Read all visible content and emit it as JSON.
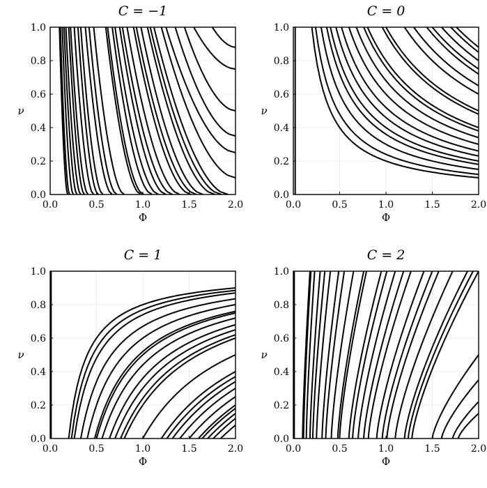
{
  "chart_data": [
    {
      "type": "line",
      "title": "C = −1",
      "xlabel": "Φ",
      "ylabel": "ν",
      "xlim": [
        0,
        2
      ],
      "ylim": [
        0,
        1
      ],
      "xticks": [
        "0.0",
        "0.5",
        "1.0",
        "1.5",
        "2.0"
      ],
      "yticks": [
        "0.0",
        "0.2",
        "0.4",
        "0.6",
        "0.8",
        "1.0"
      ],
      "grid": true,
      "curve_family": "decreasing",
      "series": [
        {
          "x": [
            0.19,
            0.1
          ],
          "y": [
            0,
            1
          ]
        },
        {
          "x": [
            0.21,
            0.11
          ],
          "y": [
            0,
            1
          ]
        },
        {
          "x": [
            0.25,
            0.13
          ],
          "y": [
            0,
            1
          ]
        },
        {
          "x": [
            0.29,
            0.15
          ],
          "y": [
            0,
            1
          ]
        },
        {
          "x": [
            0.33,
            0.17
          ],
          "y": [
            0,
            1
          ]
        },
        {
          "x": [
            0.37,
            0.2
          ],
          "y": [
            0,
            1
          ]
        },
        {
          "x": [
            0.41,
            0.22
          ],
          "y": [
            0,
            1
          ]
        },
        {
          "x": [
            0.47,
            0.26
          ],
          "y": [
            0,
            1
          ]
        },
        {
          "x": [
            0.52,
            0.3
          ],
          "y": [
            0,
            1
          ]
        },
        {
          "x": [
            0.57,
            0.33
          ],
          "y": [
            0,
            1
          ]
        },
        {
          "x": [
            0.67,
            0.38
          ],
          "y": [
            0,
            1
          ]
        },
        {
          "x": [
            0.72,
            0.42
          ],
          "y": [
            0,
            1
          ]
        },
        {
          "x": [
            0.8,
            0.47
          ],
          "y": [
            0,
            1
          ]
        },
        {
          "x": [
            0.98,
            0.6
          ],
          "y": [
            0,
            1
          ]
        },
        {
          "x": [
            1.01,
            0.62
          ],
          "y": [
            0,
            1
          ]
        },
        {
          "x": [
            1.1,
            0.67
          ],
          "y": [
            0,
            1
          ]
        },
        {
          "x": [
            1.17,
            0.7
          ],
          "y": [
            0,
            1
          ]
        },
        {
          "x": [
            1.25,
            0.75
          ],
          "y": [
            0,
            1
          ]
        },
        {
          "x": [
            1.32,
            0.78
          ],
          "y": [
            0,
            1
          ]
        },
        {
          "x": [
            1.4,
            0.83
          ],
          "y": [
            0,
            1
          ]
        },
        {
          "x": [
            1.52,
            0.9
          ],
          "y": [
            0,
            1
          ]
        },
        {
          "x": [
            1.58,
            0.93
          ],
          "y": [
            0,
            1
          ]
        },
        {
          "x": [
            1.65,
            0.98
          ],
          "y": [
            0,
            1
          ]
        },
        {
          "x": [
            1.78,
            1.05
          ],
          "y": [
            0,
            1
          ]
        },
        {
          "x": [
            1.85,
            1.08
          ],
          "y": [
            0,
            1
          ]
        },
        {
          "x": [
            1.92,
            1.12
          ],
          "y": [
            0,
            1
          ]
        },
        {
          "x": [
            2.0,
            1.2
          ],
          "y": [
            0.1,
            1
          ]
        },
        {
          "x": [
            2.0,
            1.25
          ],
          "y": [
            0.25,
            1
          ]
        },
        {
          "x": [
            2.0,
            1.35
          ],
          "y": [
            0.35,
            1
          ]
        },
        {
          "x": [
            2.0,
            1.45
          ],
          "y": [
            0.5,
            1
          ]
        },
        {
          "x": [
            2.0,
            1.55
          ],
          "y": [
            0.75,
            1
          ]
        },
        {
          "x": [
            2.0,
            1.75
          ],
          "y": [
            0.88,
            1
          ]
        }
      ]
    },
    {
      "type": "line",
      "title": "C = 0",
      "xlabel": "Φ",
      "ylabel": "ν",
      "xlim": [
        0,
        2
      ],
      "ylim": [
        0,
        1
      ],
      "xticks": [
        "0.0",
        "0.5",
        "1.0",
        "1.5",
        "2.0"
      ],
      "yticks": [
        "0.0",
        "0.2",
        "0.4",
        "0.6",
        "0.8",
        "1.0"
      ],
      "grid": true,
      "curve_family": "hyperbolic",
      "series": [
        {
          "x": [
            0.02,
            0.02
          ],
          "y": [
            0,
            1
          ]
        },
        {
          "x": [
            0.2,
            2.0
          ],
          "y": [
            1,
            0.1
          ]
        },
        {
          "x": [
            0.24,
            2.0
          ],
          "y": [
            1,
            0.12
          ]
        },
        {
          "x": [
            0.3,
            2.0
          ],
          "y": [
            1,
            0.15
          ]
        },
        {
          "x": [
            0.36,
            2.0
          ],
          "y": [
            1,
            0.18
          ]
        },
        {
          "x": [
            0.4,
            2.0
          ],
          "y": [
            1,
            0.2
          ]
        },
        {
          "x": [
            0.46,
            2.0
          ],
          "y": [
            1,
            0.23
          ]
        },
        {
          "x": [
            0.52,
            2.0
          ],
          "y": [
            1,
            0.26
          ]
        },
        {
          "x": [
            0.6,
            2.0
          ],
          "y": [
            1,
            0.3
          ]
        },
        {
          "x": [
            0.68,
            2.0
          ],
          "y": [
            1,
            0.34
          ]
        },
        {
          "x": [
            0.76,
            2.0
          ],
          "y": [
            1,
            0.38
          ]
        },
        {
          "x": [
            0.8,
            2.0
          ],
          "y": [
            1,
            0.4
          ]
        },
        {
          "x": [
            0.96,
            2.0
          ],
          "y": [
            1,
            0.48
          ]
        },
        {
          "x": [
            1.0,
            2.0
          ],
          "y": [
            1,
            0.5
          ]
        },
        {
          "x": [
            1.2,
            2.0
          ],
          "y": [
            1,
            0.6
          ]
        },
        {
          "x": [
            1.3,
            2.0
          ],
          "y": [
            1,
            0.65
          ]
        },
        {
          "x": [
            1.44,
            2.0
          ],
          "y": [
            1,
            0.72
          ]
        },
        {
          "x": [
            1.5,
            2.0
          ],
          "y": [
            1,
            0.75
          ]
        },
        {
          "x": [
            1.6,
            2.0
          ],
          "y": [
            1,
            0.8
          ]
        },
        {
          "x": [
            1.7,
            2.0
          ],
          "y": [
            1,
            0.85
          ]
        },
        {
          "x": [
            1.76,
            2.0
          ],
          "y": [
            1,
            0.88
          ]
        }
      ]
    },
    {
      "type": "line",
      "title": "C = 1",
      "xlabel": "Φ",
      "ylabel": "ν",
      "xlim": [
        0,
        2
      ],
      "ylim": [
        0,
        1
      ],
      "xticks": [
        "0.0",
        "0.5",
        "1.0",
        "1.5",
        "2.0"
      ],
      "yticks": [
        "0.0",
        "0.2",
        "0.4",
        "0.6",
        "0.8",
        "1.0"
      ],
      "grid": true,
      "curve_family": "saturating",
      "series": [
        {
          "x": [
            0.01,
            0.01
          ],
          "y": [
            0,
            1
          ]
        },
        {
          "x": [
            0.2,
            2.0
          ],
          "y": [
            0,
            0.9
          ]
        },
        {
          "x": [
            0.23,
            2.0
          ],
          "y": [
            0,
            0.885
          ]
        },
        {
          "x": [
            0.26,
            2.0
          ],
          "y": [
            0,
            0.87
          ]
        },
        {
          "x": [
            0.33,
            2.0
          ],
          "y": [
            0,
            0.835
          ]
        },
        {
          "x": [
            0.4,
            2.0
          ],
          "y": [
            0,
            0.8
          ]
        },
        {
          "x": [
            0.48,
            2.0
          ],
          "y": [
            0,
            0.76
          ]
        },
        {
          "x": [
            0.5,
            2.0
          ],
          "y": [
            0,
            0.75
          ]
        },
        {
          "x": [
            0.56,
            2.0
          ],
          "y": [
            0,
            0.72
          ]
        },
        {
          "x": [
            0.64,
            2.0
          ],
          "y": [
            0,
            0.68
          ]
        },
        {
          "x": [
            0.7,
            2.0
          ],
          "y": [
            0,
            0.65
          ]
        },
        {
          "x": [
            0.76,
            2.0
          ],
          "y": [
            0,
            0.62
          ]
        },
        {
          "x": [
            0.8,
            2.0
          ],
          "y": [
            0,
            0.6
          ]
        },
        {
          "x": [
            1.0,
            2.0
          ],
          "y": [
            0,
            0.5
          ]
        },
        {
          "x": [
            1.2,
            2.0
          ],
          "y": [
            0,
            0.4
          ]
        },
        {
          "x": [
            1.26,
            2.0
          ],
          "y": [
            0,
            0.37
          ]
        },
        {
          "x": [
            1.32,
            2.0
          ],
          "y": [
            0,
            0.34
          ]
        },
        {
          "x": [
            1.4,
            2.0
          ],
          "y": [
            0,
            0.3
          ]
        },
        {
          "x": [
            1.5,
            2.0
          ],
          "y": [
            0,
            0.25
          ]
        },
        {
          "x": [
            1.6,
            2.0
          ],
          "y": [
            0,
            0.2
          ]
        },
        {
          "x": [
            1.64,
            2.0
          ],
          "y": [
            0,
            0.18
          ]
        },
        {
          "x": [
            1.7,
            2.0
          ],
          "y": [
            0,
            0.15
          ]
        },
        {
          "x": [
            1.76,
            2.0
          ],
          "y": [
            0,
            0.12
          ]
        },
        {
          "x": [
            1.84,
            2.0
          ],
          "y": [
            0,
            0.08
          ]
        }
      ]
    },
    {
      "type": "line",
      "title": "C = 2",
      "xlabel": "Φ",
      "ylabel": "ν",
      "xlim": [
        0,
        2
      ],
      "ylim": [
        0,
        1
      ],
      "xticks": [
        "0.0",
        "0.5",
        "1.0",
        "1.5",
        "2.0"
      ],
      "yticks": [
        "0.0",
        "0.2",
        "0.4",
        "0.6",
        "0.8",
        "1.0"
      ],
      "grid": true,
      "curve_family": "increasing",
      "series": [
        {
          "x": [
            0.01,
            0.01
          ],
          "y": [
            0,
            1
          ]
        },
        {
          "x": [
            0.1,
            0.18
          ],
          "y": [
            0,
            1
          ]
        },
        {
          "x": [
            0.11,
            0.19
          ],
          "y": [
            0,
            1
          ]
        },
        {
          "x": [
            0.14,
            0.23
          ],
          "y": [
            0,
            1
          ]
        },
        {
          "x": [
            0.18,
            0.29
          ],
          "y": [
            0,
            1
          ]
        },
        {
          "x": [
            0.21,
            0.34
          ],
          "y": [
            0,
            1
          ]
        },
        {
          "x": [
            0.25,
            0.4
          ],
          "y": [
            0,
            1
          ]
        },
        {
          "x": [
            0.31,
            0.49
          ],
          "y": [
            0,
            1
          ]
        },
        {
          "x": [
            0.35,
            0.55
          ],
          "y": [
            0,
            1
          ]
        },
        {
          "x": [
            0.41,
            0.65
          ],
          "y": [
            0,
            1
          ]
        },
        {
          "x": [
            0.48,
            0.76
          ],
          "y": [
            0,
            1
          ]
        },
        {
          "x": [
            0.5,
            0.79
          ],
          "y": [
            0,
            1
          ]
        },
        {
          "x": [
            0.6,
            0.95
          ],
          "y": [
            0,
            1
          ]
        },
        {
          "x": [
            0.64,
            1.01
          ],
          "y": [
            0,
            1
          ]
        },
        {
          "x": [
            0.7,
            1.1
          ],
          "y": [
            0,
            1
          ]
        },
        {
          "x": [
            0.76,
            1.19
          ],
          "y": [
            0,
            1
          ]
        },
        {
          "x": [
            0.81,
            1.27
          ],
          "y": [
            0,
            1
          ]
        },
        {
          "x": [
            0.9,
            1.41
          ],
          "y": [
            0,
            1
          ]
        },
        {
          "x": [
            0.96,
            1.5
          ],
          "y": [
            0,
            1
          ]
        },
        {
          "x": [
            1.01,
            1.57
          ],
          "y": [
            0,
            1
          ]
        },
        {
          "x": [
            1.1,
            1.72
          ],
          "y": [
            0,
            1
          ]
        },
        {
          "x": [
            1.2,
            1.88
          ],
          "y": [
            0,
            1
          ]
        },
        {
          "x": [
            1.24,
            1.94
          ],
          "y": [
            0,
            1
          ]
        },
        {
          "x": [
            1.28,
            2.0
          ],
          "y": [
            0,
            1
          ]
        },
        {
          "x": [
            1.5,
            2.0
          ],
          "y": [
            0,
            0.5
          ]
        },
        {
          "x": [
            1.6,
            2.0
          ],
          "y": [
            0,
            0.35
          ]
        },
        {
          "x": [
            1.72,
            2.0
          ],
          "y": [
            0,
            0.22
          ]
        },
        {
          "x": [
            1.78,
            2.0
          ],
          "y": [
            0,
            0.15
          ]
        }
      ]
    }
  ]
}
